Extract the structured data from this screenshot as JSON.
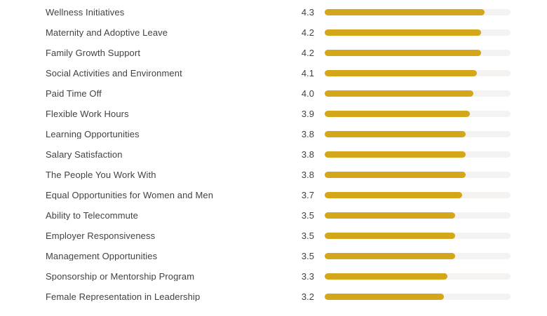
{
  "chart_data": {
    "type": "bar",
    "orientation": "horizontal",
    "title": "",
    "xlabel": "",
    "ylabel": "",
    "xlim": [
      0,
      5
    ],
    "grid": false,
    "legend": false,
    "categories": [
      "Wellness Initiatives",
      "Maternity and Adoptive Leave",
      "Family Growth Support",
      "Social Activities and Environment",
      "Paid Time Off",
      "Flexible Work Hours",
      "Learning Opportunities",
      "Salary Satisfaction",
      "The People You Work With",
      "Equal Opportunities for Women and Men",
      "Ability to Telecommute",
      "Employer Responsiveness",
      "Management Opportunities",
      "Sponsorship or Mentorship Program",
      "Female Representation in Leadership"
    ],
    "values": [
      4.3,
      4.2,
      4.2,
      4.1,
      4.0,
      3.9,
      3.8,
      3.8,
      3.8,
      3.7,
      3.5,
      3.5,
      3.5,
      3.3,
      3.2
    ],
    "value_labels": [
      "4.3",
      "4.2",
      "4.2",
      "4.1",
      "4.0",
      "3.9",
      "3.8",
      "3.8",
      "3.8",
      "3.7",
      "3.5",
      "3.5",
      "3.5",
      "3.3",
      "3.2"
    ],
    "colors": {
      "bar_fill": "#D3A719",
      "bar_track": "#F4F3F1",
      "text": "#424242",
      "background": "#FFFFFF"
    }
  }
}
